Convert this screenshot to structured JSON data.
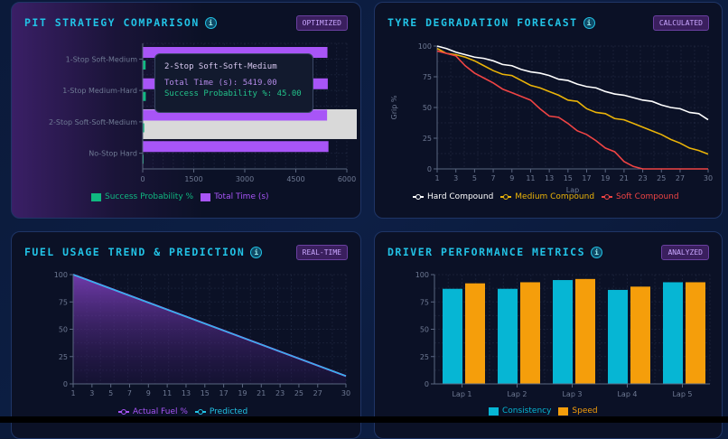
{
  "panels": {
    "pit": {
      "title": "PIT STRATEGY COMPARISON",
      "badge": "OPTIMIZED"
    },
    "tyre": {
      "title": "TYRE DEGRADATION FORECAST",
      "badge": "CALCULATED"
    },
    "fuel": {
      "title": "FUEL USAGE TREND & PREDICTION",
      "badge": "REAL-TIME"
    },
    "driver": {
      "title": "DRIVER PERFORMANCE METRICS",
      "badge": "ANALYZED"
    }
  },
  "tooltip": {
    "title": "2-Stop Soft-Soft-Medium",
    "line1": "Total Time (s): 5419.00",
    "line2": "Success Probability %: 45.00"
  },
  "chart_data": [
    {
      "type": "bar",
      "orientation": "horizontal",
      "categories": [
        "1-Stop Soft-Medium",
        "1-Stop Medium-Hard",
        "2-Stop Soft-Soft-Medium",
        "No-Stop Hard"
      ],
      "series": [
        {
          "name": "Success Probability %",
          "values": [
            85,
            90,
            45,
            20
          ],
          "color": "#10b981"
        },
        {
          "name": "Total Time (s)",
          "values": [
            5430,
            5440,
            5419,
            5460
          ],
          "color": "#a855f7"
        }
      ],
      "xlim": [
        0,
        6000
      ],
      "xticks": [
        "0",
        "1500",
        "3000",
        "4500",
        "6000"
      ],
      "highlighted": "2-Stop Soft-Soft-Medium",
      "legend": "bottom"
    },
    {
      "type": "line",
      "xlabel": "Lap",
      "ylabel": "Grip %",
      "ylim": [
        0,
        100
      ],
      "yticks": [
        "0",
        "25",
        "50",
        "75",
        "100"
      ],
      "x": [
        1,
        2,
        3,
        4,
        5,
        6,
        7,
        8,
        9,
        10,
        11,
        12,
        13,
        14,
        15,
        16,
        17,
        18,
        19,
        20,
        21,
        22,
        23,
        24,
        25,
        26,
        27,
        28,
        29,
        30
      ],
      "xticks": [
        "1",
        "3",
        "5",
        "7",
        "9",
        "11",
        "13",
        "15",
        "17",
        "19",
        "21",
        "23",
        "25",
        "27",
        "30"
      ],
      "series": [
        {
          "name": "Hard Compound",
          "color": "#ffffff",
          "values": [
            100,
            98,
            95,
            93,
            91,
            90,
            88,
            85,
            84,
            81,
            79,
            78,
            76,
            73,
            72,
            69,
            67,
            66,
            63,
            61,
            60,
            58,
            56,
            55,
            52,
            50,
            49,
            46,
            45,
            40
          ]
        },
        {
          "name": "Medium Compound",
          "color": "#eab308",
          "values": [
            98,
            94,
            93,
            91,
            88,
            84,
            80,
            77,
            76,
            72,
            68,
            66,
            63,
            60,
            56,
            55,
            49,
            46,
            45,
            41,
            40,
            37,
            34,
            31,
            28,
            24,
            21,
            17,
            15,
            12
          ]
        },
        {
          "name": "Soft Compound",
          "color": "#ef4444",
          "values": [
            96,
            94,
            92,
            84,
            78,
            74,
            70,
            65,
            62,
            59,
            56,
            49,
            43,
            42,
            37,
            31,
            28,
            23,
            17,
            14,
            6,
            2,
            0,
            0,
            0,
            0,
            0,
            0,
            0,
            0
          ]
        }
      ],
      "legend": "bottom"
    },
    {
      "type": "area",
      "ylim": [
        0,
        100
      ],
      "yticks": [
        "0",
        "25",
        "50",
        "75",
        "100"
      ],
      "x": [
        1,
        2,
        3,
        4,
        5,
        6,
        7,
        8,
        9,
        10,
        11,
        12,
        13,
        14,
        15,
        16,
        17,
        18,
        19,
        20,
        21,
        22,
        23,
        24,
        25,
        26,
        27,
        28,
        29,
        30
      ],
      "xticks": [
        "1",
        "3",
        "5",
        "7",
        "9",
        "11",
        "13",
        "15",
        "17",
        "19",
        "21",
        "23",
        "25",
        "27",
        "30"
      ],
      "series": [
        {
          "name": "Actual Fuel %",
          "color": "#a855f7",
          "values": [
            100,
            96.8,
            93.6,
            90.4,
            87.2,
            84,
            80.8,
            77.6,
            74.4,
            71.2,
            68,
            64.8,
            61.6,
            58.4,
            55.2,
            52,
            48.8,
            45.6,
            42.4,
            39.2,
            36,
            32.8,
            29.6,
            26.4,
            23.2,
            20,
            16.8,
            13.6,
            10.4,
            7.2
          ]
        },
        {
          "name": "Predicted",
          "color": "#22c3e6",
          "values": [
            100,
            96.8,
            93.6,
            90.4,
            87.2,
            84,
            80.8,
            77.6,
            74.4,
            71.2,
            68,
            64.8,
            61.6,
            58.4,
            55.2,
            52,
            48.8,
            45.6,
            42.4,
            39.2,
            36,
            32.8,
            29.6,
            26.4,
            23.2,
            20,
            16.8,
            13.6,
            10.4,
            7.2
          ]
        }
      ],
      "legend": "bottom"
    },
    {
      "type": "bar",
      "categories": [
        "Lap 1",
        "Lap 2",
        "Lap 3",
        "Lap 4",
        "Lap 5"
      ],
      "ylim": [
        0,
        100
      ],
      "yticks": [
        "0",
        "25",
        "50",
        "75",
        "100"
      ],
      "series": [
        {
          "name": "Consistency",
          "color": "#06b6d4",
          "values": [
            87,
            87,
            95,
            86,
            93
          ]
        },
        {
          "name": "Speed",
          "color": "#f59e0b",
          "values": [
            92,
            93,
            96,
            89,
            93
          ]
        }
      ],
      "legend": "bottom"
    }
  ]
}
